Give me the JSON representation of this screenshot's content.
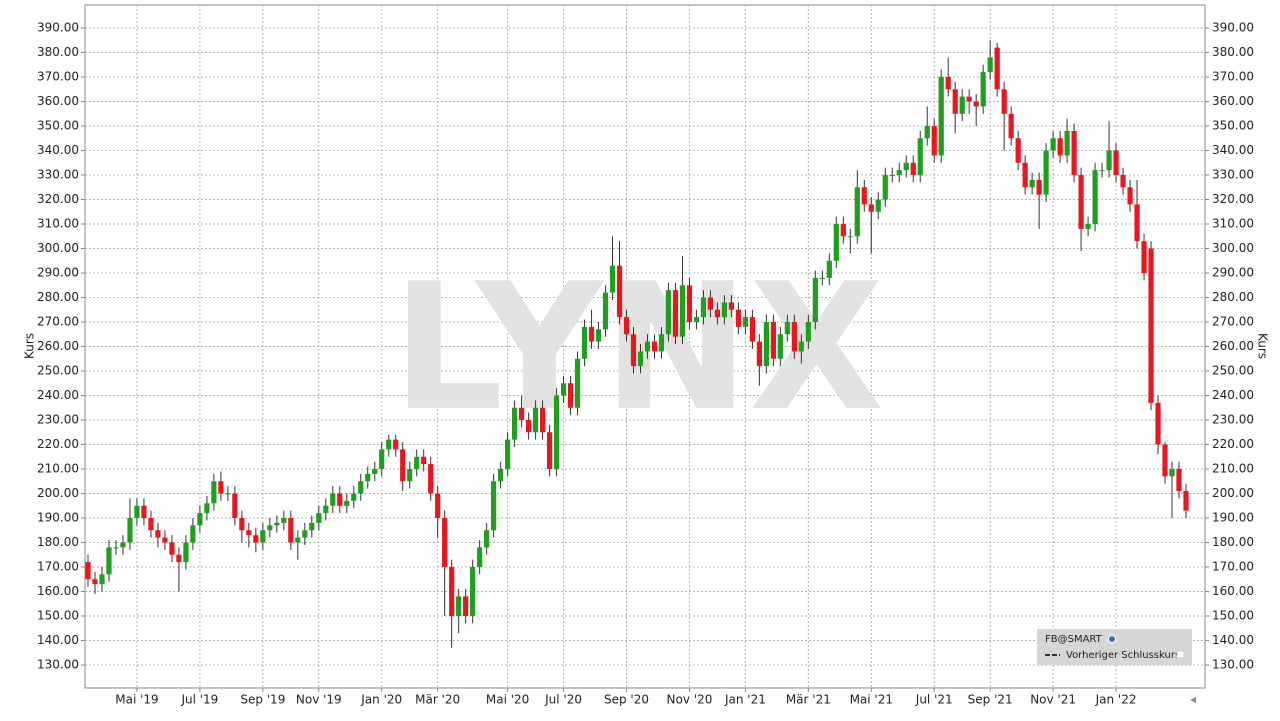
{
  "chart_data": {
    "type": "candlestick",
    "watermark": "LYNX",
    "y_label": "Kurs",
    "legend": "bottom-right",
    "grid": true,
    "ylim": [
      120.6,
      399.4
    ],
    "yticks": [
      {
        "value": 130,
        "label": "130.00"
      },
      {
        "value": 140,
        "label": "140.00"
      },
      {
        "value": 150,
        "label": "150.00"
      },
      {
        "value": 160,
        "label": "160.00"
      },
      {
        "value": 170,
        "label": "170.00"
      },
      {
        "value": 180,
        "label": "180.00"
      },
      {
        "value": 190,
        "label": "190.00"
      },
      {
        "value": 200,
        "label": "200.00"
      },
      {
        "value": 210,
        "label": "210.00"
      },
      {
        "value": 220,
        "label": "220.00"
      },
      {
        "value": 230,
        "label": "230.00"
      },
      {
        "value": 240,
        "label": "240.00"
      },
      {
        "value": 250,
        "label": "250.00"
      },
      {
        "value": 260,
        "label": "260.00"
      },
      {
        "value": 270,
        "label": "270.00"
      },
      {
        "value": 280,
        "label": "280.00"
      },
      {
        "value": 290,
        "label": "290.00"
      },
      {
        "value": 300,
        "label": "300.00"
      },
      {
        "value": 310,
        "label": "310.00"
      },
      {
        "value": 320,
        "label": "320.00"
      },
      {
        "value": 330,
        "label": "330.00"
      },
      {
        "value": 340,
        "label": "340.00"
      },
      {
        "value": 350,
        "label": "350.00"
      },
      {
        "value": 360,
        "label": "360.00"
      },
      {
        "value": 370,
        "label": "370.00"
      },
      {
        "value": 380,
        "label": "380.00"
      },
      {
        "value": 390,
        "label": "390.00"
      }
    ],
    "categories": [
      null,
      null,
      null,
      null,
      null,
      null,
      null,
      "Mai '19",
      null,
      null,
      null,
      null,
      null,
      null,
      null,
      null,
      "Jul '19",
      null,
      null,
      null,
      null,
      null,
      null,
      null,
      null,
      "Sep '19",
      null,
      null,
      null,
      null,
      null,
      null,
      null,
      "Nov '19",
      null,
      null,
      null,
      null,
      null,
      null,
      null,
      null,
      "Jan '20",
      null,
      null,
      null,
      null,
      null,
      null,
      null,
      "Mär '20",
      null,
      null,
      null,
      null,
      null,
      null,
      null,
      null,
      null,
      "Mai '20",
      null,
      null,
      null,
      null,
      null,
      null,
      null,
      "Jul '20",
      null,
      null,
      null,
      null,
      null,
      null,
      null,
      null,
      "Sep '20",
      null,
      null,
      null,
      null,
      null,
      null,
      null,
      null,
      "Nov '20",
      null,
      null,
      null,
      null,
      null,
      null,
      null,
      "Jan '21",
      null,
      null,
      null,
      null,
      null,
      null,
      null,
      null,
      "Mär '21",
      null,
      null,
      null,
      null,
      null,
      null,
      null,
      null,
      "Mai '21",
      null,
      null,
      null,
      null,
      null,
      null,
      null,
      null,
      "Jul '21",
      null,
      null,
      null,
      null,
      null,
      null,
      null,
      "Sep '21",
      null,
      null,
      null,
      null,
      null,
      null,
      null,
      null,
      "Nov '21",
      null,
      null,
      null,
      null,
      null,
      null,
      null,
      null,
      "Jan '22",
      null,
      null,
      null,
      null,
      null,
      null,
      null,
      null,
      null,
      null
    ],
    "series": [
      {
        "name": "FB@SMART",
        "up_color": "#1f9e1f",
        "down_color": "#e8161d",
        "ohlc": [
          [
            172,
            175,
            162,
            165
          ],
          [
            165,
            168,
            159,
            163
          ],
          [
            163,
            170,
            160,
            167
          ],
          [
            167,
            181,
            164,
            178
          ],
          [
            178,
            181,
            175,
            178
          ],
          [
            178,
            183,
            175,
            180
          ],
          [
            180,
            198,
            177,
            190
          ],
          [
            190,
            198,
            187,
            195
          ],
          [
            195,
            198,
            187,
            190
          ],
          [
            190,
            193,
            182,
            185
          ],
          [
            185,
            188,
            178,
            182
          ],
          [
            182,
            185,
            177,
            180
          ],
          [
            180,
            183,
            172,
            175
          ],
          [
            175,
            178,
            160,
            172
          ],
          [
            172,
            183,
            169,
            180
          ],
          [
            180,
            190,
            177,
            187
          ],
          [
            187,
            195,
            184,
            192
          ],
          [
            192,
            199,
            189,
            196
          ],
          [
            196,
            208,
            193,
            205
          ],
          [
            205,
            209,
            197,
            200
          ],
          [
            200,
            203,
            197,
            200
          ],
          [
            200,
            203,
            187,
            190
          ],
          [
            190,
            193,
            180,
            185
          ],
          [
            185,
            188,
            178,
            183
          ],
          [
            183,
            186,
            176,
            180
          ],
          [
            180,
            188,
            177,
            185
          ],
          [
            185,
            190,
            182,
            187
          ],
          [
            187,
            191,
            184,
            188
          ],
          [
            188,
            193,
            185,
            190
          ],
          [
            190,
            193,
            177,
            180
          ],
          [
            180,
            185,
            173,
            182
          ],
          [
            182,
            188,
            179,
            185
          ],
          [
            185,
            191,
            182,
            188
          ],
          [
            188,
            195,
            185,
            192
          ],
          [
            192,
            198,
            189,
            195
          ],
          [
            195,
            203,
            192,
            200
          ],
          [
            200,
            203,
            192,
            195
          ],
          [
            195,
            200,
            192,
            197
          ],
          [
            197,
            203,
            194,
            200
          ],
          [
            200,
            208,
            197,
            205
          ],
          [
            205,
            211,
            202,
            208
          ],
          [
            208,
            213,
            205,
            210
          ],
          [
            210,
            221,
            207,
            218
          ],
          [
            218,
            224,
            215,
            222
          ],
          [
            222,
            224,
            215,
            218
          ],
          [
            218,
            221,
            201,
            205
          ],
          [
            205,
            213,
            202,
            210
          ],
          [
            210,
            218,
            207,
            215
          ],
          [
            215,
            218,
            209,
            212
          ],
          [
            212,
            215,
            197,
            200
          ],
          [
            200,
            203,
            182,
            190
          ],
          [
            190,
            193,
            150,
            170
          ],
          [
            170,
            173,
            137,
            150
          ],
          [
            150,
            161,
            143,
            158
          ],
          [
            158,
            161,
            147,
            150
          ],
          [
            150,
            173,
            147,
            170
          ],
          [
            170,
            181,
            167,
            178
          ],
          [
            178,
            188,
            175,
            185
          ],
          [
            185,
            208,
            182,
            205
          ],
          [
            205,
            213,
            202,
            210
          ],
          [
            210,
            225,
            207,
            222
          ],
          [
            222,
            238,
            219,
            235
          ],
          [
            235,
            240,
            227,
            230
          ],
          [
            230,
            233,
            222,
            225
          ],
          [
            225,
            238,
            222,
            235
          ],
          [
            235,
            238,
            222,
            225
          ],
          [
            225,
            228,
            207,
            210
          ],
          [
            210,
            243,
            207,
            240
          ],
          [
            240,
            248,
            237,
            245
          ],
          [
            245,
            248,
            232,
            235
          ],
          [
            235,
            258,
            232,
            255
          ],
          [
            255,
            271,
            252,
            268
          ],
          [
            268,
            275,
            259,
            262
          ],
          [
            262,
            270,
            259,
            267
          ],
          [
            267,
            285,
            264,
            282
          ],
          [
            282,
            305,
            279,
            293
          ],
          [
            293,
            303,
            269,
            272
          ],
          [
            272,
            275,
            262,
            265
          ],
          [
            265,
            268,
            249,
            252
          ],
          [
            252,
            261,
            249,
            258
          ],
          [
            258,
            265,
            255,
            262
          ],
          [
            262,
            265,
            255,
            258
          ],
          [
            258,
            268,
            255,
            265
          ],
          [
            265,
            286,
            262,
            283
          ],
          [
            283,
            286,
            261,
            264
          ],
          [
            264,
            297,
            261,
            285
          ],
          [
            285,
            288,
            267,
            270
          ],
          [
            270,
            275,
            267,
            272
          ],
          [
            272,
            283,
            269,
            280
          ],
          [
            280,
            283,
            272,
            275
          ],
          [
            275,
            278,
            269,
            272
          ],
          [
            272,
            281,
            269,
            278
          ],
          [
            278,
            281,
            272,
            275
          ],
          [
            275,
            278,
            265,
            268
          ],
          [
            268,
            275,
            265,
            272
          ],
          [
            272,
            275,
            259,
            262
          ],
          [
            262,
            265,
            244,
            252
          ],
          [
            252,
            273,
            249,
            270
          ],
          [
            270,
            273,
            252,
            255
          ],
          [
            255,
            268,
            252,
            265
          ],
          [
            265,
            273,
            262,
            270
          ],
          [
            270,
            273,
            255,
            258
          ],
          [
            258,
            265,
            253,
            262
          ],
          [
            262,
            273,
            259,
            270
          ],
          [
            270,
            291,
            267,
            288
          ],
          [
            288,
            291,
            285,
            288
          ],
          [
            288,
            298,
            285,
            295
          ],
          [
            295,
            313,
            292,
            310
          ],
          [
            310,
            313,
            302,
            305
          ],
          [
            305,
            308,
            298,
            305
          ],
          [
            305,
            332,
            302,
            325
          ],
          [
            325,
            328,
            315,
            318
          ],
          [
            318,
            321,
            298,
            315
          ],
          [
            315,
            323,
            312,
            320
          ],
          [
            320,
            333,
            317,
            330
          ],
          [
            330,
            333,
            327,
            330
          ],
          [
            330,
            335,
            327,
            332
          ],
          [
            332,
            338,
            329,
            335
          ],
          [
            335,
            338,
            327,
            330
          ],
          [
            330,
            348,
            327,
            345
          ],
          [
            345,
            358,
            342,
            350
          ],
          [
            350,
            353,
            335,
            338
          ],
          [
            338,
            373,
            335,
            370
          ],
          [
            370,
            378,
            362,
            365
          ],
          [
            365,
            368,
            347,
            355
          ],
          [
            355,
            365,
            352,
            362
          ],
          [
            362,
            365,
            355,
            360
          ],
          [
            360,
            363,
            350,
            358
          ],
          [
            358,
            375,
            355,
            372
          ],
          [
            372,
            385,
            369,
            378
          ],
          [
            382,
            384,
            362,
            365
          ],
          [
            365,
            368,
            340,
            355
          ],
          [
            355,
            358,
            342,
            345
          ],
          [
            345,
            348,
            332,
            335
          ],
          [
            335,
            338,
            322,
            325
          ],
          [
            325,
            331,
            322,
            328
          ],
          [
            328,
            331,
            308,
            322
          ],
          [
            322,
            343,
            319,
            340
          ],
          [
            340,
            348,
            337,
            345
          ],
          [
            345,
            348,
            335,
            338
          ],
          [
            338,
            353,
            335,
            348
          ],
          [
            348,
            351,
            327,
            330
          ],
          [
            330,
            333,
            299,
            308
          ],
          [
            308,
            313,
            305,
            310
          ],
          [
            310,
            335,
            307,
            332
          ],
          [
            332,
            335,
            329,
            332
          ],
          [
            332,
            352,
            329,
            340
          ],
          [
            340,
            343,
            327,
            330
          ],
          [
            330,
            333,
            322,
            325
          ],
          [
            325,
            328,
            315,
            318
          ],
          [
            318,
            328,
            300,
            303
          ],
          [
            303,
            306,
            287,
            290
          ],
          [
            300,
            303,
            234,
            237
          ],
          [
            237,
            240,
            216,
            220
          ],
          [
            220,
            221,
            204,
            207
          ],
          [
            207,
            213,
            190,
            210
          ],
          [
            210,
            213,
            198,
            201
          ],
          [
            201,
            204,
            190,
            193
          ]
        ]
      },
      {
        "name": "Vorheriger Schlusskurs",
        "color": "#333333"
      }
    ]
  }
}
